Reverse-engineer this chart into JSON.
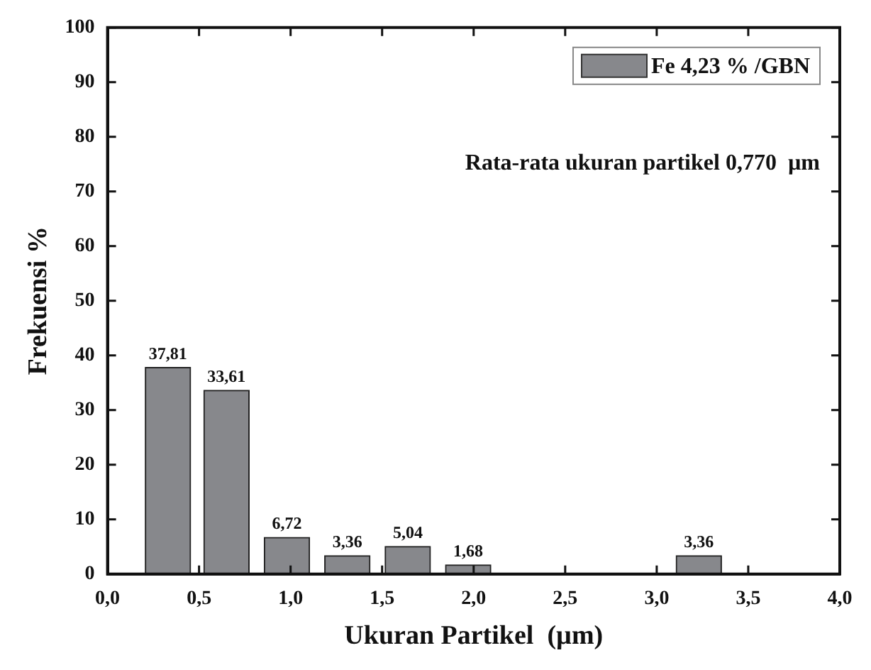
{
  "chart_data": {
    "type": "bar",
    "xlabel": "Ukuran Partikel  (µm)",
    "ylabel": "Frekuensi %",
    "x": [
      0.33,
      0.65,
      0.98,
      1.31,
      1.64,
      1.97,
      3.23
    ],
    "series": [
      {
        "name": "Fe 4,23 % /GBN",
        "color": "#87888c",
        "values": [
          37.81,
          33.61,
          6.72,
          3.36,
          5.04,
          1.68,
          3.36
        ]
      }
    ],
    "value_labels": [
      "37,81",
      "33,61",
      "6,72",
      "3,36",
      "5,04",
      "1,68",
      "3,36"
    ],
    "xlim": [
      0,
      4
    ],
    "xticks": [
      {
        "value": 0,
        "label": "0,0"
      },
      {
        "value": 0.5,
        "label": "0,5"
      },
      {
        "value": 1,
        "label": "1,0"
      },
      {
        "value": 1.5,
        "label": "1,5"
      },
      {
        "value": 2,
        "label": "2,0"
      },
      {
        "value": 2.5,
        "label": "2,5"
      },
      {
        "value": 3,
        "label": "3,0"
      },
      {
        "value": 3.5,
        "label": "3,5"
      },
      {
        "value": 4,
        "label": "4,0"
      }
    ],
    "ylim": [
      0,
      100
    ],
    "yticks": [
      0,
      10,
      20,
      30,
      40,
      50,
      60,
      70,
      80,
      90,
      100
    ],
    "grid": false,
    "legend": "top right",
    "annotations": [
      "Rata-rata ukuran partikel 0,770  µm"
    ]
  }
}
